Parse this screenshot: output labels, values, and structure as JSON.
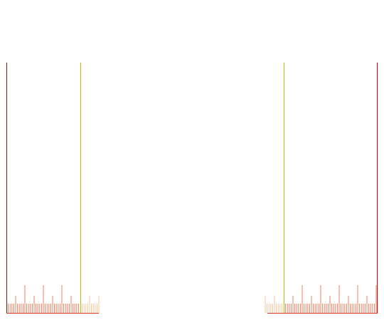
{
  "colors": {
    "background": "#ffffff",
    "boundary_line": "#d10000",
    "guide_line": "#e0b000",
    "ruler_baseline": "#e03a2a",
    "tick_inside": "#f08060",
    "tick_outside": "#f6c69a"
  },
  "rulers": [
    {
      "name": "left-ruler",
      "outer_edge": "left",
      "tick_count_inside": 40,
      "tick_count_outside": 10,
      "major_every": 10,
      "medium_every": 5
    },
    {
      "name": "right-ruler",
      "outer_edge": "right",
      "tick_count_inside": 50,
      "tick_count_outside": 10,
      "major_every": 10,
      "medium_every": 5
    }
  ]
}
